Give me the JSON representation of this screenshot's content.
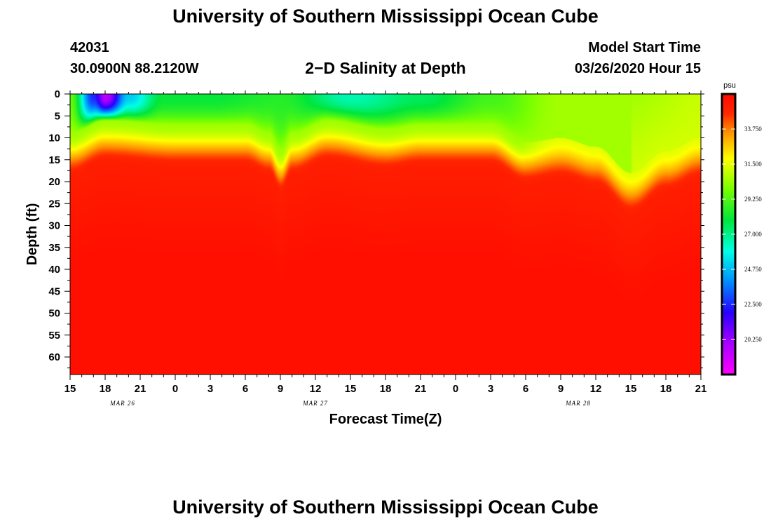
{
  "header": {
    "title": "University of Southern Mississippi Ocean Cube",
    "station_id": "42031",
    "station_coords": "30.0900N 88.2120W",
    "plot_title": "2−D Salinity at Depth",
    "model_label": "Model Start Time",
    "model_time": "03/26/2020 Hour 15"
  },
  "footer": {
    "title": "University of Southern Mississippi Ocean Cube"
  },
  "chart_data": {
    "type": "heatmap",
    "title": "2−D Salinity at Depth",
    "xlabel": "Forecast Time(Z)",
    "ylabel": "Depth (ft)",
    "x_hours_range": [
      0,
      54
    ],
    "x_ticks": [
      {
        "hour": 0,
        "label": "15"
      },
      {
        "hour": 3,
        "label": "18"
      },
      {
        "hour": 6,
        "label": "21"
      },
      {
        "hour": 9,
        "label": "0"
      },
      {
        "hour": 12,
        "label": "3"
      },
      {
        "hour": 15,
        "label": "6"
      },
      {
        "hour": 18,
        "label": "9"
      },
      {
        "hour": 21,
        "label": "12"
      },
      {
        "hour": 24,
        "label": "15"
      },
      {
        "hour": 27,
        "label": "18"
      },
      {
        "hour": 30,
        "label": "21"
      },
      {
        "hour": 33,
        "label": "0"
      },
      {
        "hour": 36,
        "label": "3"
      },
      {
        "hour": 39,
        "label": "6"
      },
      {
        "hour": 42,
        "label": "9"
      },
      {
        "hour": 45,
        "label": "12"
      },
      {
        "hour": 48,
        "label": "15"
      },
      {
        "hour": 51,
        "label": "18"
      },
      {
        "hour": 54,
        "label": "21"
      }
    ],
    "date_labels": [
      {
        "hour": 4.5,
        "label": "MAR 26"
      },
      {
        "hour": 21,
        "label": "MAR 27"
      },
      {
        "hour": 43.5,
        "label": "MAR 28"
      }
    ],
    "y_range": [
      0,
      64
    ],
    "y_ticks": [
      0,
      5,
      10,
      15,
      20,
      25,
      30,
      35,
      40,
      45,
      50,
      55,
      60
    ],
    "colorbar": {
      "unit": "psu",
      "range": [
        18.0,
        36.0
      ],
      "ticks": [
        "20.250",
        "22.500",
        "24.750",
        "27.000",
        "29.250",
        "31.500",
        "33.750"
      ],
      "tick_values": [
        20.25,
        22.5,
        24.75,
        27.0,
        29.25,
        31.5,
        33.75
      ]
    },
    "surface_salinity": [
      {
        "hour": 0,
        "value": 29.5
      },
      {
        "hour": 2,
        "value": 22.5
      },
      {
        "hour": 3,
        "value": 19.5
      },
      {
        "hour": 5,
        "value": 25.0
      },
      {
        "hour": 8,
        "value": 28.0
      },
      {
        "hour": 12,
        "value": 28.0
      },
      {
        "hour": 18,
        "value": 28.5
      },
      {
        "hour": 24,
        "value": 26.5
      },
      {
        "hour": 30,
        "value": 27.5
      },
      {
        "hour": 36,
        "value": 29.0
      },
      {
        "hour": 42,
        "value": 30.5
      },
      {
        "hour": 48,
        "value": 30.5
      },
      {
        "hour": 54,
        "value": 31.0
      }
    ],
    "halocline_depth_ft": [
      {
        "hour": 0,
        "value": 13
      },
      {
        "hour": 3,
        "value": 10
      },
      {
        "hour": 9,
        "value": 11
      },
      {
        "hour": 15,
        "value": 11
      },
      {
        "hour": 17,
        "value": 13
      },
      {
        "hour": 18,
        "value": 17
      },
      {
        "hour": 19,
        "value": 13
      },
      {
        "hour": 22,
        "value": 10
      },
      {
        "hour": 27,
        "value": 12
      },
      {
        "hour": 30,
        "value": 11
      },
      {
        "hour": 36,
        "value": 11
      },
      {
        "hour": 39,
        "value": 15
      },
      {
        "hour": 42,
        "value": 14
      },
      {
        "hour": 45,
        "value": 16
      },
      {
        "hour": 48,
        "value": 22
      },
      {
        "hour": 51,
        "value": 17
      },
      {
        "hour": 54,
        "value": 14
      }
    ],
    "deep_salinity": 35.8
  }
}
